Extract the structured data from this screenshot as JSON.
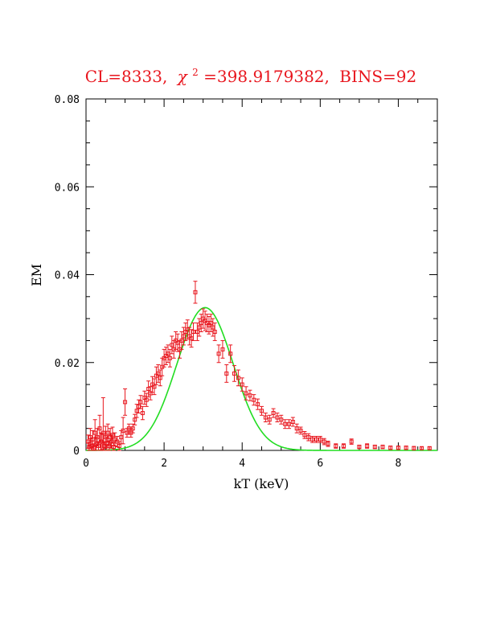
{
  "chart_data": {
    "type": "scatter",
    "title": {
      "cl": "CL=8333,",
      "chi_symbol": "χ",
      "chi_exp": "2",
      "chi_rest": "=398.9179382,",
      "bins": "BINS=92"
    },
    "xlabel": "kT (keV)",
    "ylabel": "EM",
    "xlim": [
      0,
      9
    ],
    "ylim": [
      0,
      0.08
    ],
    "x_ticks": [
      0,
      2,
      4,
      6,
      8
    ],
    "x_tick_labels": [
      "0",
      "2",
      "4",
      "6",
      "8"
    ],
    "y_ticks": [
      0,
      0.02,
      0.04,
      0.06,
      0.08
    ],
    "y_tick_labels": [
      "0",
      "0.02",
      "0.04",
      "0.06",
      "0.08"
    ],
    "colors": {
      "data": "#e8161e",
      "fit": "#22dd22",
      "title": "#e8161e"
    },
    "series": [
      {
        "kind": "points-with-errors",
        "points": [
          [
            0.05,
            0.002,
            0.0015
          ],
          [
            0.08,
            0.0008,
            0.001
          ],
          [
            0.11,
            0.003,
            0.002
          ],
          [
            0.14,
            0.001,
            0.0012
          ],
          [
            0.17,
            0.0025,
            0.002
          ],
          [
            0.2,
            0.0005,
            0.001
          ],
          [
            0.23,
            0.004,
            0.003
          ],
          [
            0.26,
            0.0015,
            0.0015
          ],
          [
            0.29,
            0.003,
            0.002
          ],
          [
            0.32,
            0.001,
            0.001
          ],
          [
            0.35,
            0.005,
            0.003
          ],
          [
            0.38,
            0.002,
            0.002
          ],
          [
            0.41,
            0.002,
            0.0018
          ],
          [
            0.44,
            0.004,
            0.008
          ],
          [
            0.47,
            0.001,
            0.001
          ],
          [
            0.5,
            0.003,
            0.0025
          ],
          [
            0.53,
            0.0015,
            0.0015
          ],
          [
            0.56,
            0.004,
            0.002
          ],
          [
            0.59,
            0.001,
            0.0012
          ],
          [
            0.62,
            0.003,
            0.002
          ],
          [
            0.65,
            0.002,
            0.0015
          ],
          [
            0.68,
            0.0035,
            0.0018
          ],
          [
            0.71,
            0.0008,
            0.001
          ],
          [
            0.74,
            0.0025,
            0.0015
          ],
          [
            0.8,
            0.002,
            0.0012
          ],
          [
            0.85,
            0.001,
            0.001
          ],
          [
            0.9,
            0.003,
            0.0015
          ],
          [
            0.95,
            0.0045,
            0.003
          ],
          [
            1.0,
            0.011,
            0.003
          ],
          [
            1.05,
            0.004,
            0.001
          ],
          [
            1.1,
            0.005,
            0.001
          ],
          [
            1.15,
            0.004,
            0.001
          ],
          [
            1.2,
            0.005,
            0.001
          ],
          [
            1.25,
            0.007,
            0.0012
          ],
          [
            1.3,
            0.009,
            0.0015
          ],
          [
            1.35,
            0.01,
            0.0015
          ],
          [
            1.4,
            0.011,
            0.0015
          ],
          [
            1.45,
            0.0085,
            0.0015
          ],
          [
            1.5,
            0.012,
            0.0015
          ],
          [
            1.55,
            0.0115,
            0.0015
          ],
          [
            1.6,
            0.014,
            0.0018
          ],
          [
            1.65,
            0.013,
            0.0015
          ],
          [
            1.7,
            0.015,
            0.0018
          ],
          [
            1.75,
            0.0145,
            0.0018
          ],
          [
            1.8,
            0.017,
            0.002
          ],
          [
            1.85,
            0.0175,
            0.002
          ],
          [
            1.9,
            0.0165,
            0.0018
          ],
          [
            1.95,
            0.019,
            0.002
          ],
          [
            2.0,
            0.021,
            0.002
          ],
          [
            2.05,
            0.0215,
            0.002
          ],
          [
            2.1,
            0.022,
            0.002
          ],
          [
            2.15,
            0.021,
            0.002
          ],
          [
            2.2,
            0.024,
            0.002
          ],
          [
            2.25,
            0.023,
            0.002
          ],
          [
            2.3,
            0.025,
            0.002
          ],
          [
            2.35,
            0.0245,
            0.002
          ],
          [
            2.4,
            0.023,
            0.002
          ],
          [
            2.45,
            0.025,
            0.002
          ],
          [
            2.5,
            0.026,
            0.002
          ],
          [
            2.55,
            0.027,
            0.002
          ],
          [
            2.6,
            0.0275,
            0.0022
          ],
          [
            2.65,
            0.026,
            0.002
          ],
          [
            2.7,
            0.0255,
            0.002
          ],
          [
            2.75,
            0.027,
            0.002
          ],
          [
            2.8,
            0.036,
            0.0025
          ],
          [
            2.85,
            0.027,
            0.002
          ],
          [
            2.9,
            0.028,
            0.002
          ],
          [
            2.95,
            0.029,
            0.002
          ],
          [
            3.0,
            0.03,
            0.0022
          ],
          [
            3.05,
            0.0295,
            0.0022
          ],
          [
            3.1,
            0.029,
            0.002
          ],
          [
            3.15,
            0.0285,
            0.002
          ],
          [
            3.2,
            0.029,
            0.002
          ],
          [
            3.25,
            0.028,
            0.002
          ],
          [
            3.3,
            0.027,
            0.002
          ],
          [
            3.4,
            0.022,
            0.002
          ],
          [
            3.5,
            0.023,
            0.002
          ],
          [
            3.6,
            0.0175,
            0.002
          ],
          [
            3.7,
            0.022,
            0.002
          ],
          [
            3.8,
            0.0175,
            0.0018
          ],
          [
            3.9,
            0.0165,
            0.0018
          ],
          [
            4.0,
            0.015,
            0.0015
          ],
          [
            4.1,
            0.013,
            0.0015
          ],
          [
            4.2,
            0.0125,
            0.0012
          ],
          [
            4.3,
            0.0115,
            0.0012
          ],
          [
            4.4,
            0.0105,
            0.0012
          ],
          [
            4.5,
            0.009,
            0.001
          ],
          [
            4.6,
            0.0075,
            0.001
          ],
          [
            4.7,
            0.007,
            0.001
          ],
          [
            4.8,
            0.0085,
            0.001
          ],
          [
            4.9,
            0.0075,
            0.001
          ],
          [
            5.0,
            0.007,
            0.001
          ],
          [
            5.1,
            0.006,
            0.001
          ],
          [
            5.2,
            0.006,
            0.001
          ],
          [
            5.3,
            0.0065,
            0.001
          ],
          [
            5.4,
            0.005,
            0.001
          ],
          [
            5.5,
            0.0045,
            0.0008
          ],
          [
            5.6,
            0.0035,
            0.0008
          ],
          [
            5.7,
            0.003,
            0.0008
          ],
          [
            5.8,
            0.0025,
            0.0007
          ],
          [
            5.9,
            0.0025,
            0.0007
          ],
          [
            6.0,
            0.0025,
            0.0007
          ],
          [
            6.1,
            0.002,
            0.0007
          ],
          [
            6.2,
            0.0015,
            0.0006
          ],
          [
            6.4,
            0.001,
            0.0005
          ],
          [
            6.6,
            0.001,
            0.0005
          ],
          [
            6.8,
            0.002,
            0.0006
          ],
          [
            7.0,
            0.0008,
            0.0004
          ],
          [
            7.2,
            0.001,
            0.0005
          ],
          [
            7.4,
            0.0008,
            0.0004
          ],
          [
            7.6,
            0.0008,
            0.0004
          ],
          [
            7.8,
            0.0006,
            0.0004
          ],
          [
            8.0,
            0.0006,
            0.0004
          ],
          [
            8.2,
            0.0006,
            0.0004
          ],
          [
            8.4,
            0.0005,
            0.0004
          ],
          [
            8.6,
            0.0005,
            0.0003
          ],
          [
            8.8,
            0.0005,
            0.0003
          ]
        ]
      },
      {
        "kind": "fit-curve",
        "model": "gaussian",
        "peak": 0.0325,
        "center": 3.05,
        "sigma": 0.72
      }
    ]
  }
}
